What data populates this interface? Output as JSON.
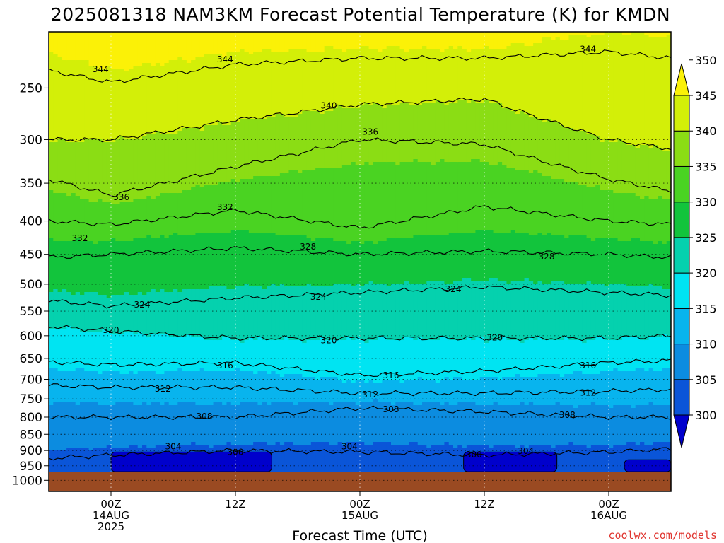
{
  "title": "2025081318 NAM3KM Forecast Potential Temperature (K) for KMDN",
  "credit": "coolwx.com/models",
  "colors": {
    "ground": "#9a4a22",
    "bands": [
      "#0000cc",
      "#0a55d8",
      "#0c8ce0",
      "#08b4ee",
      "#00e4f2",
      "#05d1ae",
      "#12c43c",
      "#4ad322",
      "#8bdd14",
      "#d3ef08",
      "#fbf107"
    ]
  },
  "chart_data": {
    "type": "contour",
    "xlabel": "Forecast Time (UTC)",
    "ylabel": "",
    "x_range_hours": [
      -6,
      54
    ],
    "y_scale": "log",
    "y_range_hpa": [
      1040,
      205
    ],
    "x_ticks": [
      {
        "hour": 0,
        "lines": [
          "00Z",
          "14AUG",
          "2025"
        ]
      },
      {
        "hour": 12,
        "lines": [
          "12Z"
        ]
      },
      {
        "hour": 24,
        "lines": [
          "00Z",
          "15AUG"
        ]
      },
      {
        "hour": 36,
        "lines": [
          "12Z"
        ]
      },
      {
        "hour": 48,
        "lines": [
          "00Z",
          "16AUG"
        ]
      }
    ],
    "y_ticks": [
      {
        "p": 250,
        "label": "250"
      },
      {
        "p": 300,
        "label": "300"
      },
      {
        "p": 350,
        "label": "350"
      },
      {
        "p": 400,
        "label": "400"
      },
      {
        "p": 450,
        "label": "450"
      },
      {
        "p": 500,
        "label": "500"
      },
      {
        "p": 550,
        "label": "550"
      },
      {
        "p": 600,
        "label": "600"
      },
      {
        "p": 650,
        "label": "650"
      },
      {
        "p": 700,
        "label": "700"
      },
      {
        "p": 750,
        "label": "750"
      },
      {
        "p": 800,
        "label": "800"
      },
      {
        "p": 850,
        "label": "850"
      },
      {
        "p": 900,
        "label": "900"
      },
      {
        "p": 950,
        "label": "950"
      },
      {
        "p": 1000,
        "label": "1000"
      }
    ],
    "surface_pressure_hpa": 970,
    "colorbar": {
      "levels": [
        300,
        305,
        310,
        315,
        320,
        325,
        330,
        335,
        340,
        345,
        350
      ],
      "labels": [
        "300",
        "305",
        "310",
        "315",
        "320",
        "325",
        "330",
        "335",
        "340",
        "345",
        "350"
      ],
      "extend": "both"
    },
    "contour_interval_K": 2,
    "isentropes": [
      {
        "theta": 304,
        "p_hpa": [
          [
            -6,
            925
          ],
          [
            0,
            915
          ],
          [
            12,
            900
          ],
          [
            24,
            905
          ],
          [
            36,
            915
          ],
          [
            48,
            905
          ],
          [
            54,
            895
          ]
        ]
      },
      {
        "theta": 308,
        "p_hpa": [
          [
            -6,
            800
          ],
          [
            0,
            800
          ],
          [
            12,
            800
          ],
          [
            24,
            775
          ],
          [
            36,
            785
          ],
          [
            48,
            800
          ],
          [
            54,
            800
          ]
        ]
      },
      {
        "theta": 312,
        "p_hpa": [
          [
            -6,
            715
          ],
          [
            0,
            720
          ],
          [
            12,
            720
          ],
          [
            24,
            735
          ],
          [
            36,
            735
          ],
          [
            48,
            730
          ],
          [
            54,
            725
          ]
        ]
      },
      {
        "theta": 316,
        "p_hpa": [
          [
            -6,
            658
          ],
          [
            0,
            665
          ],
          [
            12,
            660
          ],
          [
            24,
            690
          ],
          [
            36,
            680
          ],
          [
            48,
            660
          ],
          [
            54,
            655
          ]
        ]
      },
      {
        "theta": 320,
        "p_hpa": [
          [
            -6,
            580
          ],
          [
            0,
            590
          ],
          [
            12,
            605
          ],
          [
            24,
            605
          ],
          [
            36,
            605
          ],
          [
            48,
            605
          ],
          [
            54,
            600
          ]
        ]
      },
      {
        "theta": 324,
        "p_hpa": [
          [
            -6,
            530
          ],
          [
            0,
            540
          ],
          [
            12,
            525
          ],
          [
            24,
            515
          ],
          [
            36,
            505
          ],
          [
            48,
            515
          ],
          [
            54,
            520
          ]
        ]
      },
      {
        "theta": 328,
        "p_hpa": [
          [
            -6,
            455
          ],
          [
            0,
            450
          ],
          [
            12,
            440
          ],
          [
            24,
            450
          ],
          [
            36,
            445
          ],
          [
            48,
            450
          ],
          [
            54,
            455
          ]
        ]
      },
      {
        "theta": 332,
        "p_hpa": [
          [
            -6,
            400
          ],
          [
            0,
            405
          ],
          [
            12,
            385
          ],
          [
            24,
            410
          ],
          [
            36,
            380
          ],
          [
            48,
            400
          ],
          [
            54,
            405
          ]
        ]
      },
      {
        "theta": 336,
        "p_hpa": [
          [
            -6,
            345
          ],
          [
            0,
            365
          ],
          [
            12,
            330
          ],
          [
            24,
            300
          ],
          [
            36,
            305
          ],
          [
            48,
            345
          ],
          [
            54,
            360
          ]
        ]
      },
      {
        "theta": 340,
        "p_hpa": [
          [
            -6,
            300
          ],
          [
            0,
            300
          ],
          [
            12,
            280
          ],
          [
            24,
            265
          ],
          [
            36,
            260
          ],
          [
            48,
            300
          ],
          [
            54,
            310
          ]
        ]
      },
      {
        "theta": 344,
        "p_hpa": [
          [
            -6,
            235
          ],
          [
            0,
            245
          ],
          [
            12,
            230
          ],
          [
            24,
            225
          ],
          [
            36,
            225
          ],
          [
            48,
            220
          ],
          [
            54,
            225
          ]
        ]
      }
    ],
    "contour_labels": [
      {
        "text": "344",
        "hour": -1,
        "p": 234
      },
      {
        "text": "344",
        "hour": 11,
        "p": 226
      },
      {
        "text": "344",
        "hour": 46,
        "p": 218
      },
      {
        "text": "340",
        "hour": 21,
        "p": 266
      },
      {
        "text": "336",
        "hour": 1,
        "p": 368
      },
      {
        "text": "336",
        "hour": 25,
        "p": 292
      },
      {
        "text": "332",
        "hour": -3,
        "p": 425
      },
      {
        "text": "332",
        "hour": 11,
        "p": 381
      },
      {
        "text": "328",
        "hour": 19,
        "p": 438
      },
      {
        "text": "328",
        "hour": 42,
        "p": 454
      },
      {
        "text": "324",
        "hour": 3,
        "p": 538
      },
      {
        "text": "324",
        "hour": 20,
        "p": 523
      },
      {
        "text": "324",
        "hour": 33,
        "p": 509
      },
      {
        "text": "320",
        "hour": 0,
        "p": 588
      },
      {
        "text": "320",
        "hour": 21,
        "p": 610
      },
      {
        "text": "320",
        "hour": 37,
        "p": 604
      },
      {
        "text": "316",
        "hour": 11,
        "p": 667
      },
      {
        "text": "316",
        "hour": 27,
        "p": 690
      },
      {
        "text": "316",
        "hour": 46,
        "p": 667
      },
      {
        "text": "312",
        "hour": 5,
        "p": 724
      },
      {
        "text": "312",
        "hour": 25,
        "p": 739
      },
      {
        "text": "312",
        "hour": 46,
        "p": 734
      },
      {
        "text": "308",
        "hour": 9,
        "p": 798
      },
      {
        "text": "308",
        "hour": 27,
        "p": 778
      },
      {
        "text": "308",
        "hour": 44,
        "p": 794
      },
      {
        "text": "304",
        "hour": 6,
        "p": 887
      },
      {
        "text": "304",
        "hour": 23,
        "p": 887
      },
      {
        "text": "304",
        "hour": 40,
        "p": 902
      },
      {
        "text": "300",
        "hour": 12,
        "p": 905
      },
      {
        "text": "300",
        "hour": 35,
        "p": 913
      }
    ],
    "cold_pockets_below_300K": [
      {
        "from_hour": 0,
        "to_hour": 15.5,
        "top_hpa": 905
      },
      {
        "from_hour": 34,
        "to_hour": 43,
        "top_hpa": 905
      },
      {
        "from_hour": 49.5,
        "to_hour": 54,
        "top_hpa": 930
      }
    ]
  }
}
